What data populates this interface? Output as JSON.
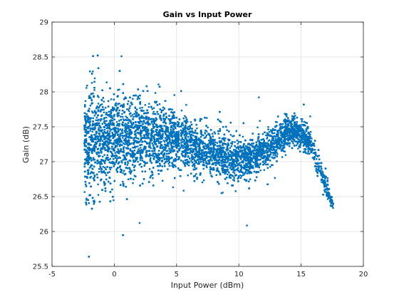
{
  "chart_data": {
    "type": "scatter",
    "title": "Gain vs Input Power",
    "xlabel": "Input Power (dBm)",
    "ylabel": "Gain (dB)",
    "xlim": [
      -5,
      20
    ],
    "ylim": [
      25.5,
      29
    ],
    "xticks": [
      -5,
      0,
      5,
      10,
      15,
      20
    ],
    "yticks": [
      25.5,
      26,
      26.5,
      27,
      27.5,
      28,
      28.5,
      29
    ],
    "xtick_labels": [
      "-5",
      "0",
      "5",
      "10",
      "15",
      "20"
    ],
    "ytick_labels": [
      "25.5",
      "26",
      "26.5",
      "27",
      "27.5",
      "28",
      "28.5",
      "29"
    ],
    "grid": true,
    "marker_color": "#0072BD",
    "series": [
      {
        "x_range": [
          -2.4,
          17.6
        ],
        "trend": [
          {
            "x": -2.4,
            "center": 27.25,
            "low": 26.4,
            "high": 28.2
          },
          {
            "x": 0,
            "center": 27.35,
            "low": 26.6,
            "high": 28.2
          },
          {
            "x": 2.5,
            "center": 27.35,
            "low": 26.8,
            "high": 28.1
          },
          {
            "x": 5,
            "center": 27.3,
            "low": 26.9,
            "high": 27.8
          },
          {
            "x": 7.5,
            "center": 27.15,
            "low": 26.8,
            "high": 27.6
          },
          {
            "x": 10,
            "center": 27.0,
            "low": 26.65,
            "high": 27.35
          },
          {
            "x": 12,
            "center": 27.15,
            "low": 26.9,
            "high": 27.45
          },
          {
            "x": 14,
            "center": 27.45,
            "low": 27.2,
            "high": 27.7
          },
          {
            "x": 15.5,
            "center": 27.35,
            "low": 27.1,
            "high": 27.6
          },
          {
            "x": 16.5,
            "center": 26.9,
            "low": 26.7,
            "high": 27.1
          },
          {
            "x": 17.6,
            "center": 26.35,
            "low": 26.25,
            "high": 26.5
          }
        ]
      }
    ]
  }
}
